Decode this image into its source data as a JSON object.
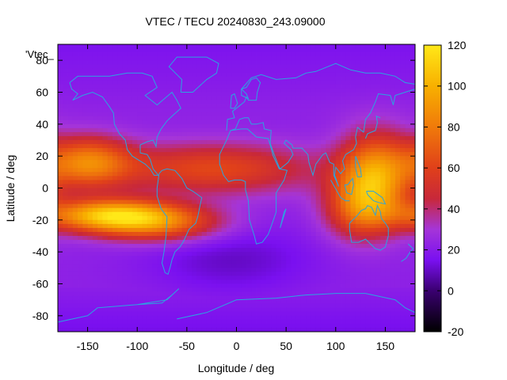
{
  "chart_data": {
    "type": "heatmap",
    "title": "VTEC / TECU 20240830_243.09000",
    "xlabel": "Longitude / deg",
    "ylabel": "Latitude / deg",
    "key_label": "'Vtec_",
    "xlim": [
      -180,
      180
    ],
    "ylim": [
      -90,
      90
    ],
    "xticks": [
      -150,
      -100,
      -50,
      0,
      50,
      100,
      150
    ],
    "yticks": [
      -80,
      -60,
      -40,
      -20,
      0,
      20,
      40,
      60,
      80
    ],
    "colorbar": {
      "min": -20,
      "max": 120,
      "ticks": [
        -20,
        0,
        20,
        40,
        60,
        80,
        100,
        120
      ],
      "palette_stops": [
        {
          "value": -20,
          "color": "#000000"
        },
        {
          "value": 0,
          "color": "#3a0070"
        },
        {
          "value": 15,
          "color": "#7a10f0"
        },
        {
          "value": 30,
          "color": "#a535d8"
        },
        {
          "value": 45,
          "color": "#c8283a"
        },
        {
          "value": 60,
          "color": "#e0401a"
        },
        {
          "value": 80,
          "color": "#f07a0a"
        },
        {
          "value": 100,
          "color": "#f8b000"
        },
        {
          "value": 120,
          "color": "#ffe818"
        }
      ]
    },
    "grid": false,
    "overlay": "coastlines",
    "overlay_color": "#2aa5e0",
    "grid_spacing_deg": {
      "lon": 5,
      "lat": 2.5
    },
    "field_features": [
      {
        "note": "background",
        "vtec": 22
      },
      {
        "note": "north band",
        "lon": -25,
        "lat": 12,
        "vtec": 62,
        "lon_width": 75,
        "lat_width": 11
      },
      {
        "note": "north band",
        "lon": -150,
        "lat": 16,
        "vtec": 78,
        "lon_width": 30,
        "lat_width": 11
      },
      {
        "note": "south band",
        "lon": -130,
        "lat": -17,
        "vtec": 96,
        "lon_width": 45,
        "lat_width": 7
      },
      {
        "note": "south band",
        "lon": -80,
        "lat": -22,
        "vtec": 72,
        "lon_width": 45,
        "lat_width": 8
      },
      {
        "note": "asia pacific",
        "lon": 140,
        "lat": 8,
        "vtec": 88,
        "lon_width": 25,
        "lat_width": 18
      },
      {
        "note": "asia pacific",
        "lon": 125,
        "lat": -12,
        "vtec": 65,
        "lon_width": 25,
        "lat_width": 14
      },
      {
        "note": "south atlantic low",
        "lon": -5,
        "lat": -45,
        "vtec": 10,
        "lon_width": 60,
        "lat_width": 15
      },
      {
        "note": "antarctic",
        "lat": -75,
        "vtec": 14
      }
    ]
  }
}
